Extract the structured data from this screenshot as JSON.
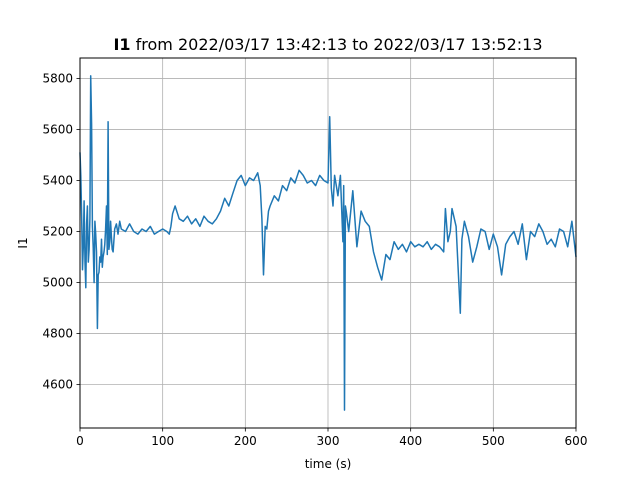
{
  "chart_data": {
    "type": "line",
    "title_bold": "I1",
    "title_rest": " from 2022/03/17 13:42:13 to 2022/03/17 13:52:13",
    "xlabel": "time (s)",
    "ylabel": "I1",
    "xlim": [
      0,
      600
    ],
    "ylim": [
      4430,
      5880
    ],
    "xticks": [
      0,
      100,
      200,
      300,
      400,
      500,
      600
    ],
    "yticks": [
      4600,
      4800,
      5000,
      5200,
      5400,
      5600,
      5800
    ],
    "grid": true,
    "series": [
      {
        "color": "#1f77b4",
        "x": [
          0,
          1,
          2,
          3,
          4,
          5,
          6,
          7,
          8,
          9,
          10,
          11,
          12,
          13,
          14,
          15,
          16,
          17,
          18,
          19,
          20,
          21,
          22,
          23,
          24,
          25,
          26,
          27,
          28,
          29,
          30,
          31,
          32,
          33,
          34,
          35,
          36,
          37,
          38,
          39,
          40,
          42,
          44,
          46,
          48,
          50,
          55,
          60,
          65,
          70,
          75,
          80,
          85,
          90,
          95,
          100,
          105,
          108,
          110,
          112,
          115,
          120,
          125,
          130,
          135,
          140,
          145,
          150,
          155,
          160,
          165,
          170,
          175,
          180,
          185,
          190,
          195,
          200,
          205,
          210,
          215,
          218,
          220,
          222,
          224,
          226,
          228,
          230,
          235,
          240,
          245,
          250,
          255,
          260,
          265,
          270,
          275,
          280,
          285,
          290,
          295,
          300,
          302,
          304,
          306,
          308,
          310,
          312,
          315,
          318,
          319,
          320,
          321,
          322,
          325,
          330,
          335,
          340,
          345,
          350,
          355,
          360,
          365,
          370,
          375,
          380,
          385,
          390,
          395,
          400,
          405,
          410,
          415,
          420,
          425,
          430,
          435,
          440,
          442,
          445,
          448,
          450,
          455,
          460,
          462,
          465,
          470,
          475,
          480,
          485,
          490,
          495,
          500,
          505,
          510,
          515,
          520,
          525,
          530,
          535,
          540,
          545,
          550,
          555,
          560,
          565,
          570,
          575,
          580,
          585,
          590,
          595,
          600
        ],
        "y": [
          5510,
          5420,
          5250,
          5050,
          5140,
          5320,
          5080,
          4980,
          5230,
          5300,
          5080,
          5130,
          5250,
          5810,
          5620,
          5220,
          5140,
          5000,
          5240,
          5190,
          5120,
          4820,
          5030,
          5040,
          5100,
          5080,
          5170,
          5060,
          5100,
          5120,
          5150,
          5210,
          5300,
          5110,
          5630,
          5130,
          5160,
          5240,
          5180,
          5130,
          5120,
          5210,
          5230,
          5190,
          5240,
          5210,
          5200,
          5230,
          5200,
          5190,
          5210,
          5200,
          5220,
          5190,
          5200,
          5210,
          5200,
          5190,
          5220,
          5270,
          5300,
          5250,
          5240,
          5260,
          5230,
          5250,
          5220,
          5260,
          5240,
          5230,
          5250,
          5280,
          5330,
          5300,
          5350,
          5400,
          5420,
          5380,
          5410,
          5400,
          5430,
          5380,
          5250,
          5030,
          5220,
          5210,
          5280,
          5300,
          5340,
          5320,
          5380,
          5360,
          5410,
          5390,
          5440,
          5420,
          5390,
          5400,
          5380,
          5420,
          5400,
          5390,
          5650,
          5370,
          5300,
          5420,
          5380,
          5340,
          5420,
          5160,
          5380,
          4500,
          5300,
          5280,
          5200,
          5360,
          5140,
          5280,
          5240,
          5220,
          5120,
          5060,
          5010,
          5110,
          5090,
          5160,
          5130,
          5150,
          5120,
          5160,
          5140,
          5150,
          5140,
          5160,
          5130,
          5150,
          5140,
          5120,
          5290,
          5160,
          5200,
          5290,
          5220,
          4880,
          5170,
          5240,
          5180,
          5080,
          5140,
          5210,
          5200,
          5130,
          5190,
          5140,
          5030,
          5150,
          5180,
          5200,
          5150,
          5230,
          5090,
          5200,
          5180,
          5230,
          5200,
          5150,
          5170,
          5140,
          5210,
          5200,
          5140,
          5240,
          5100
        ]
      }
    ]
  }
}
